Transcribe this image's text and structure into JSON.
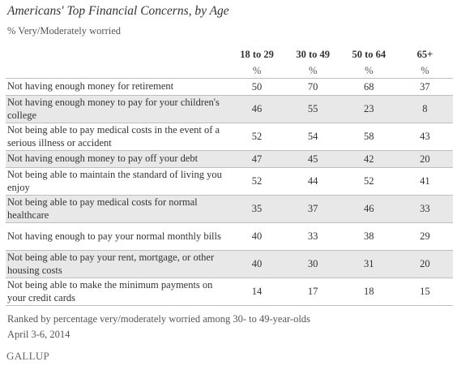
{
  "chart_data": {
    "type": "table",
    "title": "Americans' Top Financial Concerns, by Age",
    "subtitle": "% Very/Moderately worried",
    "columns": [
      "18 to 29",
      "30 to 49",
      "50 to 64",
      "65+"
    ],
    "unit": "%",
    "rows": [
      {
        "label": "Not having enough money for retirement",
        "values": [
          50,
          70,
          68,
          37
        ]
      },
      {
        "label": "Not having enough money to pay for your children's college",
        "values": [
          46,
          55,
          23,
          8
        ]
      },
      {
        "label": "Not being able to pay medical costs in the event of a serious illness or accident",
        "values": [
          52,
          54,
          58,
          43
        ]
      },
      {
        "label": "Not having enough money to pay off your debt",
        "values": [
          47,
          45,
          42,
          20
        ]
      },
      {
        "label": "Not being able to maintain the standard of living you enjoy",
        "values": [
          52,
          44,
          52,
          41
        ]
      },
      {
        "label": "Not being able to pay medical costs for normal healthcare",
        "values": [
          35,
          37,
          46,
          33
        ]
      },
      {
        "label": "Not having enough to pay your normal monthly bills",
        "values": [
          40,
          33,
          38,
          29
        ]
      },
      {
        "label": "Not being able to pay your rent, mortgage, or other housing costs",
        "values": [
          40,
          30,
          31,
          20
        ]
      },
      {
        "label": "Not being able to make the minimum payments on your credit cards",
        "values": [
          14,
          17,
          18,
          15
        ]
      }
    ],
    "notes": [
      "Ranked by percentage very/moderately worried among 30- to 49-year-olds",
      "April 3-6, 2014"
    ]
  },
  "source_logo": "GALLUP",
  "colors": {
    "row_shade": "#e8e8e8",
    "rule": "#bfbfbf",
    "text": "#333333"
  }
}
